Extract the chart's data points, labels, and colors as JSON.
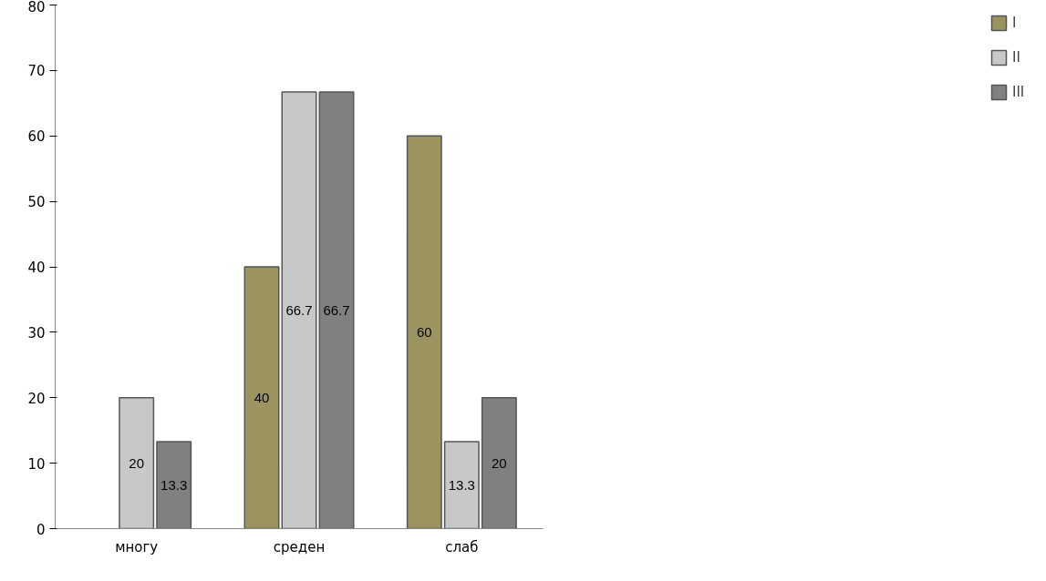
{
  "chart_data": {
    "type": "bar",
    "categories": [
      "многу",
      "среден",
      "слаб"
    ],
    "series": [
      {
        "name": "I",
        "color": "#9c9460",
        "values": [
          null,
          40,
          60
        ]
      },
      {
        "name": "II",
        "color": "#c8c8c8",
        "values": [
          20,
          66.7,
          13.3
        ]
      },
      {
        "name": "III",
        "color": "#808080",
        "values": [
          13.3,
          66.7,
          20
        ]
      }
    ],
    "ylim": [
      0,
      80
    ],
    "yticks": [
      0,
      10,
      20,
      30,
      40,
      50,
      60,
      70,
      80
    ],
    "grid": false,
    "legend": "right",
    "data_labels": true
  }
}
